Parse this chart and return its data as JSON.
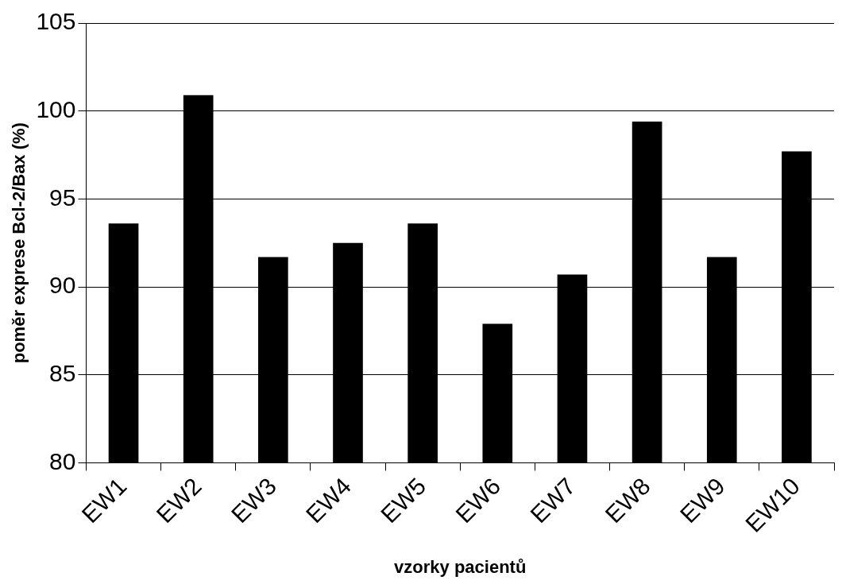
{
  "chart_data": {
    "type": "bar",
    "xlabel": "vzorky pacientů",
    "ylabel": "poměr exprese Bcl-2/Bax (%)",
    "categories": [
      "EW1",
      "EW2",
      "EW3",
      "EW4",
      "EW5",
      "EW6",
      "EW7",
      "EW8",
      "EW9",
      "EW10"
    ],
    "values": [
      93.6,
      100.9,
      91.7,
      92.5,
      93.6,
      87.9,
      90.7,
      99.4,
      91.7,
      97.7
    ],
    "color": "#000000",
    "ylim": [
      80,
      105
    ],
    "yticks": [
      80,
      85,
      90,
      95,
      100,
      105
    ],
    "grid": "y",
    "legend": false
  }
}
